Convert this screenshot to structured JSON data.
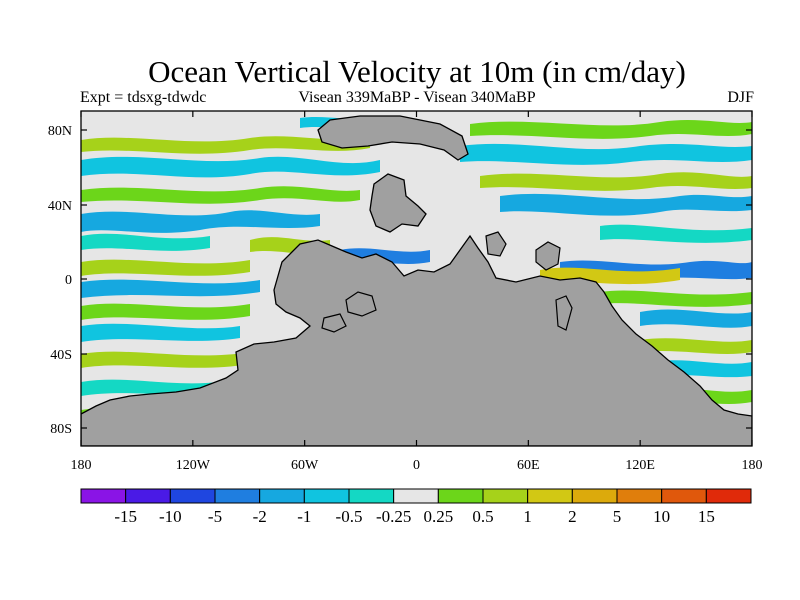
{
  "header": {
    "title": "Ocean Vertical Velocity at 10m (in cm/day)",
    "left_label": "Expt = tdsxg-tdwdc",
    "center_label": "Visean 339MaBP - Visean  340MaBP",
    "right_label": "DJF"
  },
  "axes": {
    "x_ticks": [
      "180",
      "120W",
      "60W",
      "0",
      "60E",
      "120E",
      "180"
    ],
    "y_ticks": [
      "80N",
      "40N",
      "0",
      "40S",
      "80S"
    ]
  },
  "colorbar": {
    "labels": [
      "-15",
      "-10",
      "-5",
      "-2",
      "-1",
      "-0.5",
      "-0.25",
      "0.25",
      "0.5",
      "1",
      "2",
      "5",
      "10",
      "15"
    ],
    "colors": [
      "#8a14e6",
      "#4a1ae6",
      "#1f46e0",
      "#1f7ee0",
      "#16a8e0",
      "#10c4e0",
      "#14d8c4",
      "#e6e6e6",
      "#6cd61a",
      "#a6d21a",
      "#d2c814",
      "#dcaa0c",
      "#e07e0c",
      "#e0580c",
      "#e02a0a"
    ]
  },
  "map": {
    "land_color": "#a0a0a0",
    "ocean_neutral": "#e6e6e6"
  }
}
